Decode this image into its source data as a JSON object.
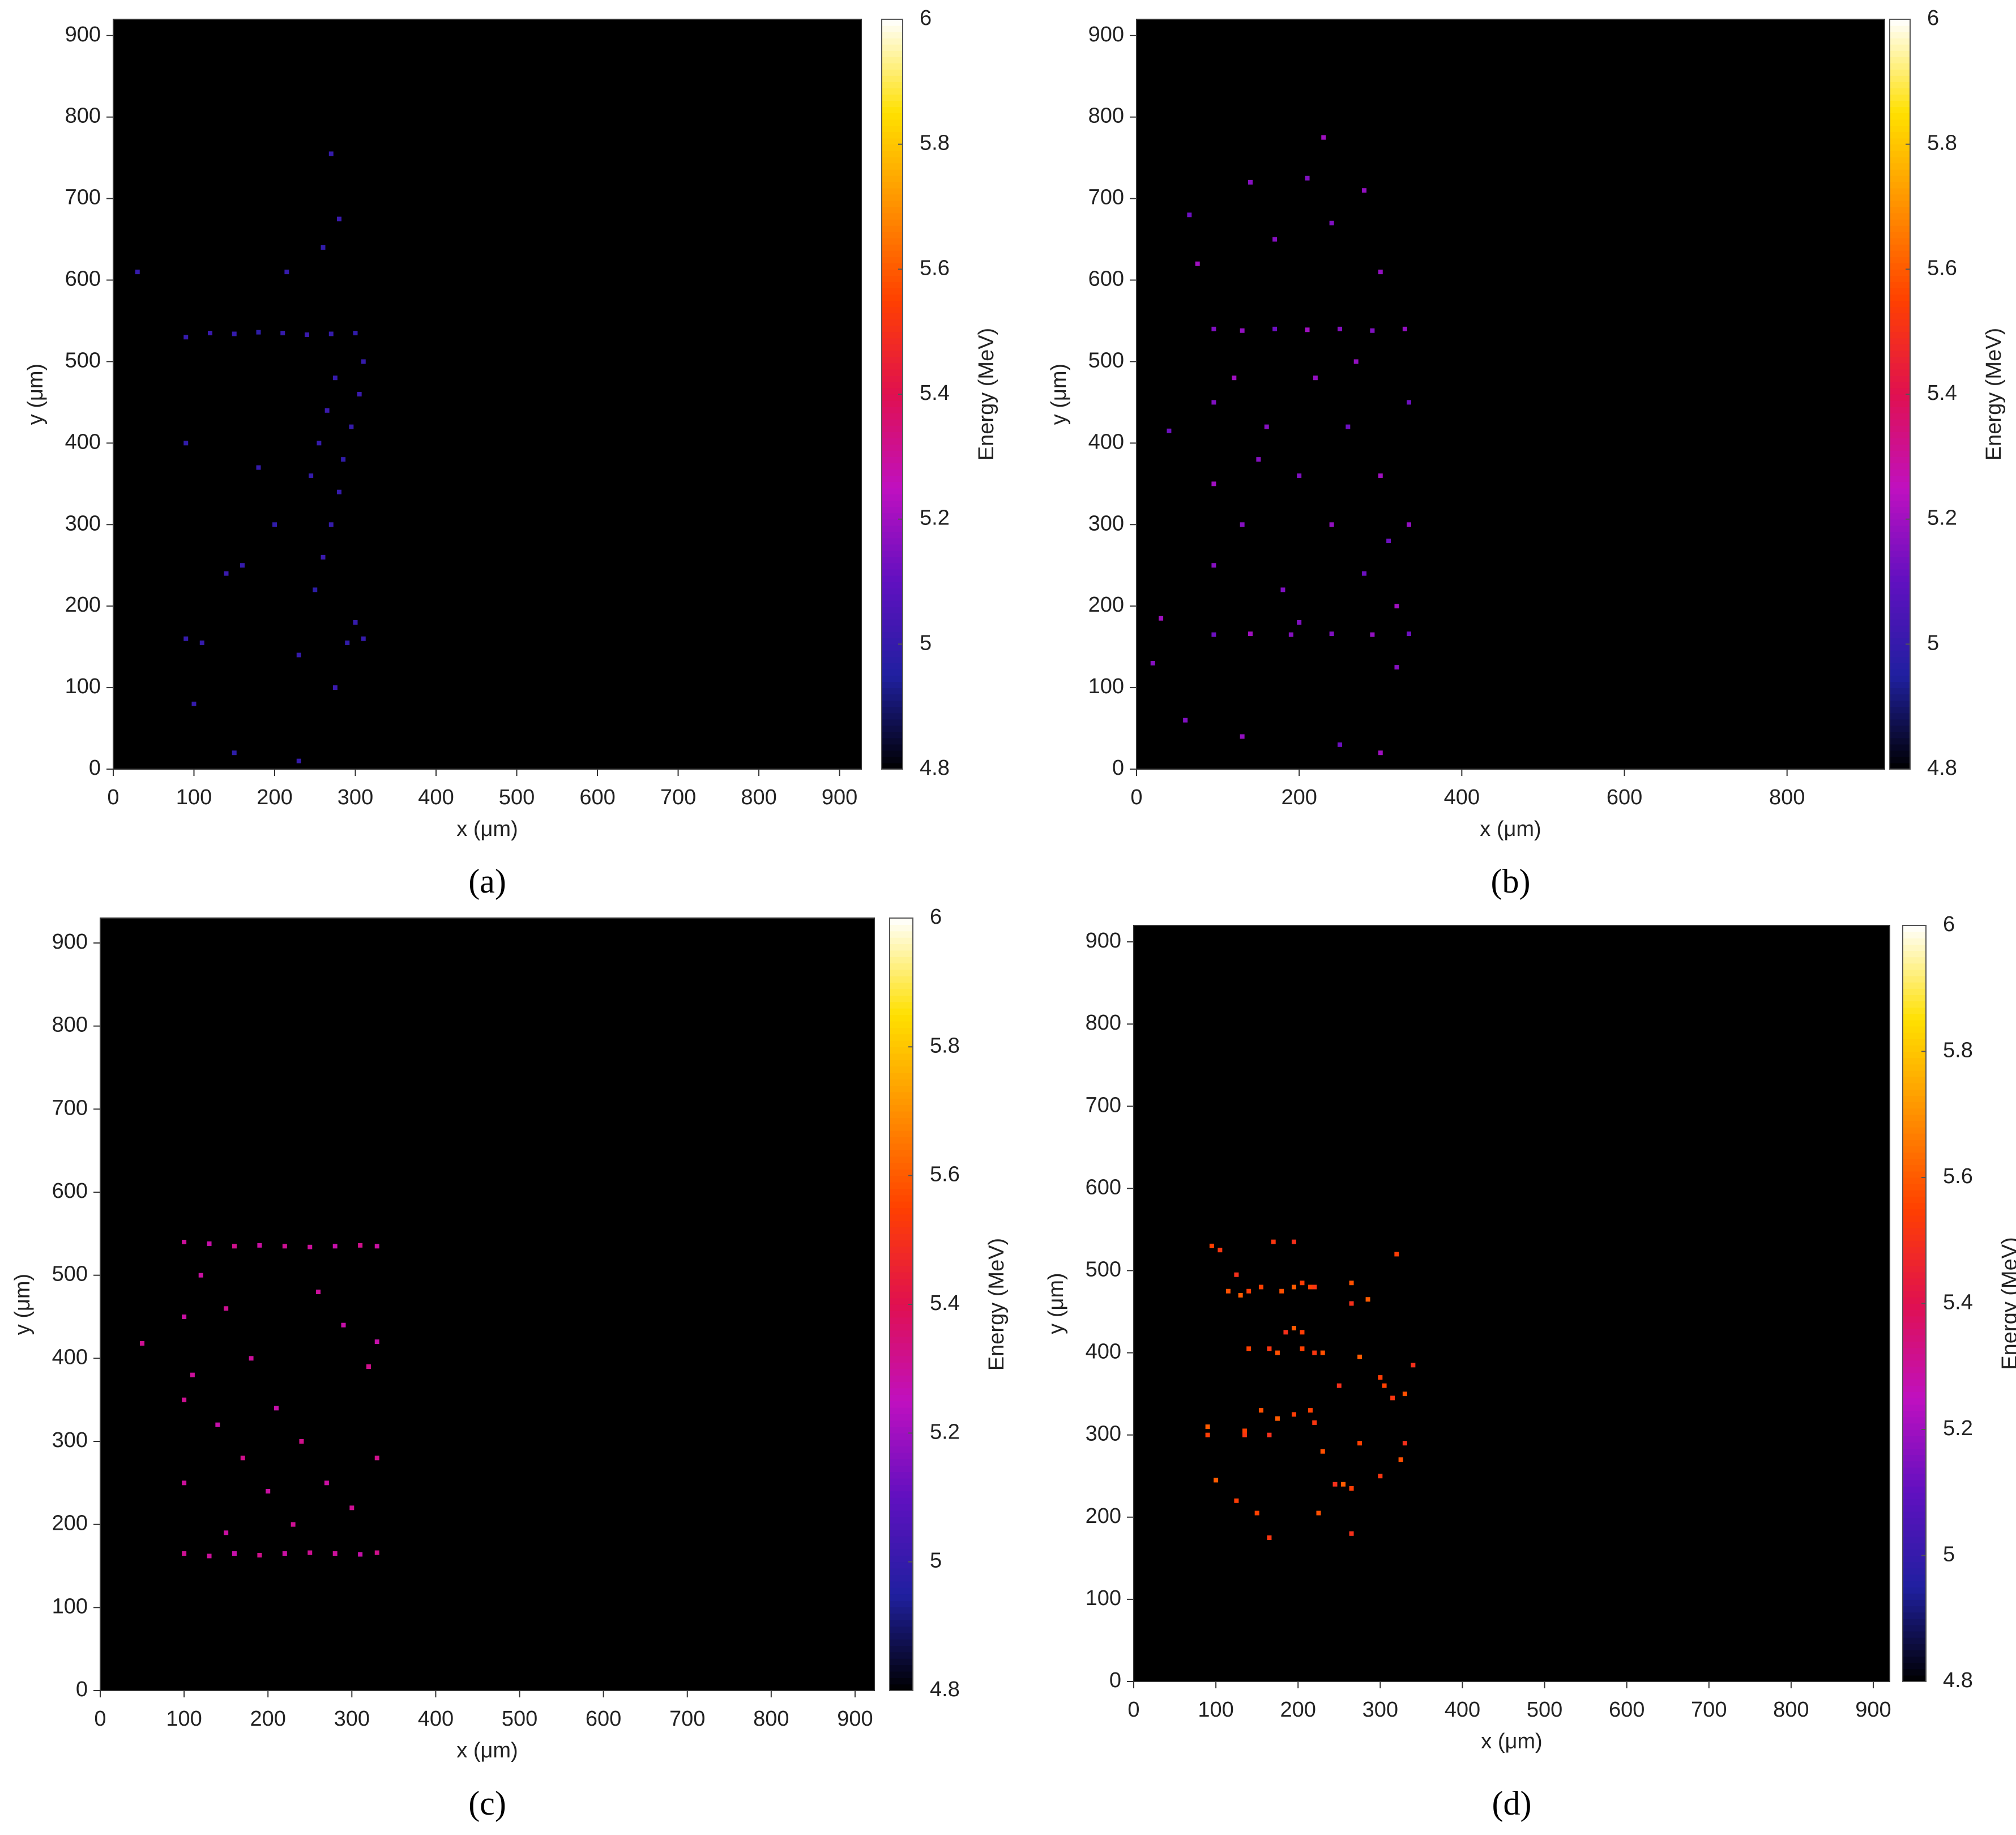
{
  "chart_data": [
    {
      "type": "scatter",
      "label": "(a)",
      "x_label": "x (μm)",
      "y_label": "y (μm)",
      "colorbar_label": "Energy (MeV)",
      "xlim": [
        0,
        927
      ],
      "ylim": [
        0,
        920
      ],
      "xticks": [
        0,
        100,
        200,
        300,
        400,
        500,
        600,
        700,
        800,
        900
      ],
      "yticks": [
        0,
        100,
        200,
        300,
        400,
        500,
        600,
        700,
        800,
        900
      ],
      "clim": [
        4.8,
        6
      ],
      "cticks": [
        4.8,
        5,
        5.2,
        5.4,
        5.6,
        5.8,
        6
      ],
      "colormap": [
        "#000000",
        "#2020a0",
        "#6010c0",
        "#c010c0",
        "#e01050",
        "#ff4000",
        "#ff9000",
        "#ffe000",
        "#ffffff"
      ],
      "background": "#000000",
      "x": [
        90,
        90,
        90,
        120,
        150,
        180,
        210,
        240,
        270,
        300,
        310,
        305,
        295,
        285,
        280,
        270,
        260,
        250,
        300,
        310,
        290,
        275,
        265,
        255,
        245,
        200,
        180,
        160,
        140,
        110,
        270,
        280,
        260,
        215,
        30,
        150,
        230,
        100,
        275,
        230
      ],
      "y": [
        530,
        400,
        160,
        535,
        534,
        536,
        535,
        533,
        534,
        535,
        500,
        460,
        420,
        380,
        340,
        300,
        260,
        220,
        180,
        160,
        155,
        480,
        440,
        400,
        360,
        300,
        370,
        250,
        240,
        155,
        755,
        675,
        640,
        610,
        610,
        20,
        10,
        80,
        100,
        140
      ],
      "values": [
        5,
        4.99,
        5,
        5.01,
        5,
        4.98,
        5,
        5.01,
        5,
        4.99,
        5,
        5.01,
        5,
        4.99,
        5,
        5,
        5.01,
        4.98,
        5,
        5,
        4.99,
        5,
        5.01,
        5,
        5,
        4.99,
        5,
        5,
        5.01,
        5,
        5,
        5.01,
        4.99,
        5,
        5,
        4.98,
        5,
        5,
        5.01,
        5
      ]
    },
    {
      "type": "scatter",
      "label": "(b)",
      "x_label": "x (μm)",
      "y_label": "y (μm)",
      "colorbar_label": "Energy (MeV)",
      "xlim": [
        0,
        920
      ],
      "ylim": [
        0,
        920
      ],
      "xticks": [
        0,
        200,
        400,
        600,
        800
      ],
      "yticks": [
        0,
        100,
        200,
        300,
        400,
        500,
        600,
        700,
        800,
        900
      ],
      "clim": [
        4.8,
        6
      ],
      "cticks": [
        4.8,
        5,
        5.2,
        5.4,
        5.6,
        5.8,
        6
      ],
      "colormap": [
        "#000000",
        "#2020a0",
        "#6010c0",
        "#c010c0",
        "#e01050",
        "#ff4000",
        "#ff9000",
        "#ffe000",
        "#ffffff"
      ],
      "background": "#000000",
      "x": [
        95,
        130,
        170,
        210,
        250,
        290,
        330,
        95,
        140,
        190,
        240,
        290,
        335,
        95,
        95,
        95,
        335,
        335,
        120,
        160,
        200,
        240,
        280,
        320,
        130,
        180,
        220,
        260,
        300,
        150,
        200,
        270,
        310,
        230,
        140,
        210,
        280,
        65,
        75,
        170,
        240,
        300,
        40,
        30,
        20,
        60,
        130,
        250,
        300,
        320
      ],
      "y": [
        540,
        538,
        540,
        539,
        540,
        538,
        540,
        165,
        166,
        165,
        166,
        165,
        166,
        350,
        250,
        450,
        300,
        450,
        480,
        420,
        360,
        300,
        240,
        200,
        300,
        220,
        480,
        420,
        360,
        380,
        180,
        500,
        280,
        775,
        720,
        725,
        710,
        680,
        620,
        650,
        670,
        610,
        415,
        185,
        130,
        60,
        40,
        30,
        20,
        125
      ],
      "values": [
        5.15,
        5.18,
        5.12,
        5.2,
        5.16,
        5.15,
        5.18,
        5.12,
        5.2,
        5.16,
        5.15,
        5.18,
        5.12,
        5.2,
        5.16,
        5.15,
        5.18,
        5.12,
        5.2,
        5.16,
        5.15,
        5.18,
        5.12,
        5.2,
        5.16,
        5.15,
        5.18,
        5.12,
        5.2,
        5.16,
        5.15,
        5.18,
        5.12,
        5.2,
        5.16,
        5.15,
        5.18,
        5.12,
        5.2,
        5.16,
        5.15,
        5.18,
        5.12,
        5.2,
        5.16,
        5.15,
        5.18,
        5.12,
        5.2,
        5.16
      ]
    },
    {
      "type": "scatter",
      "label": "(c)",
      "x_label": "x (μm)",
      "y_label": "y (μm)",
      "colorbar_label": "Energy (MeV)",
      "xlim": [
        0,
        923
      ],
      "ylim": [
        0,
        930
      ],
      "xticks": [
        0,
        100,
        200,
        300,
        400,
        500,
        600,
        700,
        800,
        900
      ],
      "yticks": [
        0,
        100,
        200,
        300,
        400,
        500,
        600,
        700,
        800,
        900
      ],
      "clim": [
        4.8,
        6
      ],
      "cticks": [
        4.8,
        5,
        5.2,
        5.4,
        5.6,
        5.8,
        6
      ],
      "colormap": [
        "#000000",
        "#2020a0",
        "#6010c0",
        "#c010c0",
        "#e01050",
        "#ff4000",
        "#ff9000",
        "#ffe000",
        "#ffffff"
      ],
      "background": "#000000",
      "x": [
        100,
        130,
        160,
        190,
        220,
        250,
        280,
        310,
        330,
        100,
        130,
        160,
        190,
        220,
        250,
        280,
        310,
        330,
        100,
        100,
        100,
        330,
        330,
        120,
        150,
        180,
        210,
        240,
        270,
        300,
        110,
        140,
        170,
        200,
        230,
        260,
        290,
        320,
        150,
        50
      ],
      "y": [
        540,
        538,
        535,
        536,
        535,
        534,
        535,
        536,
        535,
        165,
        162,
        165,
        163,
        165,
        166,
        165,
        164,
        166,
        450,
        350,
        250,
        420,
        280,
        500,
        460,
        400,
        340,
        300,
        250,
        220,
        380,
        320,
        280,
        240,
        200,
        480,
        440,
        390,
        190,
        418
      ],
      "values": [
        5.3,
        5.28,
        5.32,
        5.29,
        5.31,
        5.3,
        5.28,
        5.32,
        5.29,
        5.31,
        5.3,
        5.28,
        5.32,
        5.29,
        5.31,
        5.3,
        5.28,
        5.32,
        5.29,
        5.31,
        5.3,
        5.28,
        5.32,
        5.29,
        5.31,
        5.3,
        5.28,
        5.32,
        5.29,
        5.31,
        5.3,
        5.28,
        5.32,
        5.29,
        5.31,
        5.3,
        5.28,
        5.32,
        5.29,
        5.31
      ]
    },
    {
      "type": "scatter",
      "label": "(d)",
      "x_label": "x (μm)",
      "y_label": "y (μm)",
      "colorbar_label": "Energy (MeV)",
      "xlim": [
        0,
        920
      ],
      "ylim": [
        0,
        920
      ],
      "xticks": [
        0,
        100,
        200,
        300,
        400,
        500,
        600,
        700,
        800,
        900
      ],
      "yticks": [
        0,
        100,
        200,
        300,
        400,
        500,
        600,
        700,
        800,
        900
      ],
      "clim": [
        4.8,
        6
      ],
      "cticks": [
        4.8,
        5,
        5.2,
        5.4,
        5.6,
        5.8,
        6
      ],
      "colormap": [
        "#000000",
        "#2020a0",
        "#6010c0",
        "#c010c0",
        "#e01050",
        "#ff4000",
        "#ff9000",
        "#ffe000",
        "#ffffff"
      ],
      "background": "#000000",
      "x": [
        95,
        105,
        115,
        125,
        130,
        140,
        155,
        170,
        180,
        195,
        195,
        205,
        215,
        220,
        265,
        265,
        285,
        320,
        140,
        165,
        175,
        185,
        195,
        205,
        205,
        220,
        230,
        250,
        275,
        300,
        305,
        315,
        330,
        340,
        90,
        90,
        135,
        135,
        155,
        165,
        175,
        195,
        215,
        220,
        230,
        245,
        255,
        265,
        275,
        300,
        325,
        330,
        100,
        125,
        150,
        165,
        225,
        265
      ],
      "y": [
        530,
        525,
        475,
        495,
        470,
        475,
        480,
        535,
        475,
        535,
        480,
        485,
        480,
        480,
        485,
        460,
        465,
        520,
        405,
        405,
        400,
        425,
        430,
        425,
        405,
        400,
        400,
        360,
        395,
        370,
        360,
        345,
        350,
        385,
        310,
        300,
        305,
        300,
        330,
        300,
        320,
        325,
        330,
        315,
        280,
        240,
        240,
        235,
        290,
        250,
        270,
        290,
        245,
        220,
        205,
        175,
        205,
        180
      ],
      "values": [
        5.55,
        5.52,
        5.58,
        5.5,
        5.6,
        5.54,
        5.55,
        5.52,
        5.58,
        5.5,
        5.6,
        5.54,
        5.55,
        5.52,
        5.58,
        5.5,
        5.6,
        5.54,
        5.55,
        5.52,
        5.58,
        5.5,
        5.6,
        5.54,
        5.55,
        5.52,
        5.58,
        5.5,
        5.6,
        5.54,
        5.55,
        5.52,
        5.58,
        5.5,
        5.6,
        5.54,
        5.55,
        5.52,
        5.58,
        5.5,
        5.6,
        5.54,
        5.55,
        5.52,
        5.58,
        5.5,
        5.6,
        5.54,
        5.55,
        5.52,
        5.58,
        5.5,
        5.6,
        5.54,
        5.55,
        5.52,
        5.58,
        5.5
      ]
    }
  ]
}
